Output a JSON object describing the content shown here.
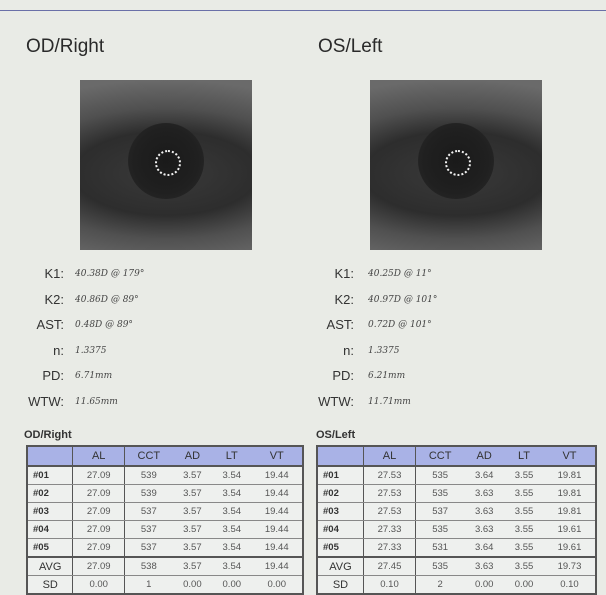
{
  "right": {
    "title": "OD/Right",
    "measurements": [
      {
        "label": "K1:",
        "value": "40.38D @ 179°"
      },
      {
        "label": "K2:",
        "value": "40.86D @ 89°"
      },
      {
        "label": "AST:",
        "value": "0.48D @ 89°"
      },
      {
        "label": "n:",
        "value": "1.3375"
      },
      {
        "label": "PD:",
        "value": "6.71mm"
      },
      {
        "label": "WTW:",
        "value": "11.65mm"
      }
    ],
    "table_caption": "OD/Right",
    "rows": [
      [
        "#01",
        "27.09",
        "539",
        "3.57",
        "3.54",
        "19.44"
      ],
      [
        "#02",
        "27.09",
        "539",
        "3.57",
        "3.54",
        "19.44"
      ],
      [
        "#03",
        "27.09",
        "537",
        "3.57",
        "3.54",
        "19.44"
      ],
      [
        "#04",
        "27.09",
        "537",
        "3.57",
        "3.54",
        "19.44"
      ],
      [
        "#05",
        "27.09",
        "537",
        "3.57",
        "3.54",
        "19.44"
      ],
      [
        "AVG",
        "27.09",
        "538",
        "3.57",
        "3.54",
        "19.44"
      ],
      [
        "SD",
        "0.00",
        "1",
        "0.00",
        "0.00",
        "0.00"
      ]
    ]
  },
  "left": {
    "title": "OS/Left",
    "measurements": [
      {
        "label": "K1:",
        "value": "40.25D @ 11°"
      },
      {
        "label": "K2:",
        "value": "40.97D @ 101°"
      },
      {
        "label": "AST:",
        "value": "0.72D @ 101°"
      },
      {
        "label": "n:",
        "value": "1.3375"
      },
      {
        "label": "PD:",
        "value": "6.21mm"
      },
      {
        "label": "WTW:",
        "value": "11.71mm"
      }
    ],
    "table_caption": "OS/Left",
    "rows": [
      [
        "#01",
        "27.53",
        "535",
        "3.64",
        "3.55",
        "19.81"
      ],
      [
        "#02",
        "27.53",
        "535",
        "3.63",
        "3.55",
        "19.81"
      ],
      [
        "#03",
        "27.53",
        "537",
        "3.63",
        "3.55",
        "19.81"
      ],
      [
        "#04",
        "27.33",
        "535",
        "3.63",
        "3.55",
        "19.61"
      ],
      [
        "#05",
        "27.33",
        "531",
        "3.64",
        "3.55",
        "19.61"
      ],
      [
        "AVG",
        "27.45",
        "535",
        "3.63",
        "3.55",
        "19.73"
      ],
      [
        "SD",
        "0.10",
        "2",
        "0.00",
        "0.00",
        "0.10"
      ]
    ]
  },
  "columns": [
    "",
    "AL",
    "CCT",
    "AD",
    "LT",
    "VT"
  ],
  "colors": {
    "header": "#a9b2e6",
    "rule": "#6a70a8"
  }
}
